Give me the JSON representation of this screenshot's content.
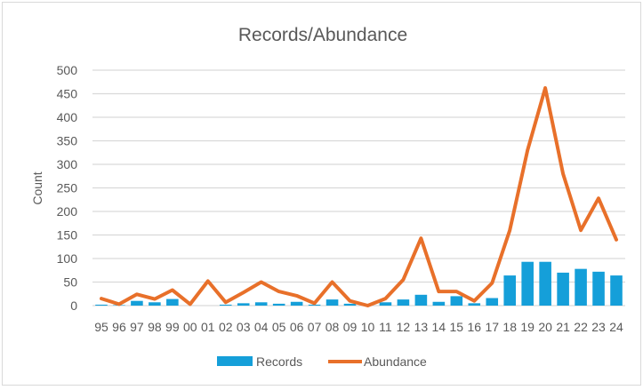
{
  "chart_data": {
    "type": "bar+line",
    "title": "Records/Abundance",
    "xlabel": "",
    "ylabel": "Count",
    "ylim": [
      0,
      500
    ],
    "yticks": [
      0,
      50,
      100,
      150,
      200,
      250,
      300,
      350,
      400,
      450,
      500
    ],
    "grid": true,
    "legend_position": "bottom",
    "categories": [
      "95",
      "96",
      "97",
      "98",
      "99",
      "00",
      "01",
      "02",
      "03",
      "04",
      "05",
      "06",
      "07",
      "08",
      "09",
      "10",
      "11",
      "12",
      "13",
      "14",
      "15",
      "16",
      "17",
      "18",
      "19",
      "20",
      "21",
      "22",
      "23",
      "24"
    ],
    "series": [
      {
        "name": "Records",
        "type": "bar",
        "color": "#159fd9",
        "values": [
          2,
          1,
          10,
          7,
          14,
          0,
          0,
          2,
          5,
          7,
          4,
          8,
          2,
          13,
          4,
          0,
          7,
          13,
          23,
          8,
          20,
          5,
          16,
          64,
          93,
          93,
          70,
          78,
          72,
          64
        ]
      },
      {
        "name": "Abundance",
        "type": "line",
        "color": "#e8702a",
        "values": [
          15,
          3,
          24,
          14,
          33,
          3,
          52,
          7,
          28,
          50,
          30,
          21,
          5,
          50,
          10,
          0,
          15,
          55,
          143,
          30,
          30,
          10,
          48,
          160,
          330,
          462,
          280,
          160,
          228,
          140
        ]
      }
    ]
  }
}
